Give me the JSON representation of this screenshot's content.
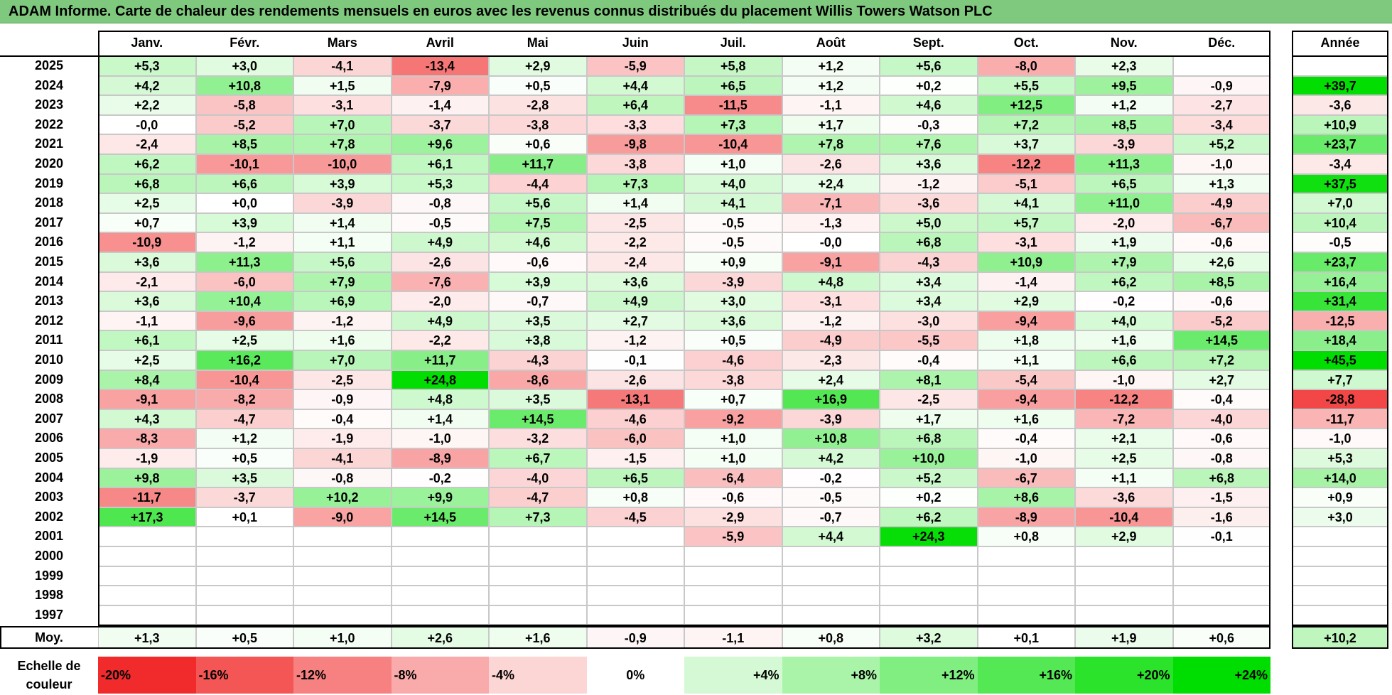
{
  "title": "ADAM Informe. Carte de chaleur des rendements mensuels en euros avec les revenus connus distribués du placement Willis Towers Watson PLC",
  "months": [
    "Janv.",
    "Févr.",
    "Mars",
    "Avril",
    "Mai",
    "Juin",
    "Juil.",
    "Août",
    "Sept.",
    "Oct.",
    "Nov.",
    "Déc."
  ],
  "year_header": "Année",
  "avg_label": "Moy.",
  "scale_label": "Echelle de couleur",
  "scale": [
    "-20%",
    "-16%",
    "-12%",
    "-8%",
    "-4%",
    "0%",
    "+4%",
    "+8%",
    "+12%",
    "+16%",
    "+20%",
    "+24%"
  ],
  "colors": {
    "title_bg": "#7fc97f",
    "positive": "#00dd00",
    "negative": "#ee0000"
  },
  "chart_data": {
    "type": "heatmap",
    "rows": [
      {
        "year": "2025",
        "months": [
          "+5,3",
          "+3,0",
          "-4,1",
          "-13,4",
          "+2,9",
          "-5,9",
          "+5,8",
          "+1,2",
          "+5,6",
          "-8,0",
          "+2,3",
          ""
        ],
        "annual": ""
      },
      {
        "year": "2024",
        "months": [
          "+4,2",
          "+10,8",
          "+1,5",
          "-7,9",
          "+0,5",
          "+4,4",
          "+6,5",
          "+1,2",
          "+0,2",
          "+5,5",
          "+9,5",
          "-0,9"
        ],
        "annual": "+39,7"
      },
      {
        "year": "2023",
        "months": [
          "+2,2",
          "-5,8",
          "-3,1",
          "-1,4",
          "-2,8",
          "+6,4",
          "-11,5",
          "-1,1",
          "+4,6",
          "+12,5",
          "+1,2",
          "-2,7"
        ],
        "annual": "-3,6"
      },
      {
        "year": "2022",
        "months": [
          "-0,0",
          "-5,2",
          "+7,0",
          "-3,7",
          "-3,8",
          "-3,3",
          "+7,3",
          "+1,7",
          "-0,3",
          "+7,2",
          "+8,5",
          "-3,4"
        ],
        "annual": "+10,9"
      },
      {
        "year": "2021",
        "months": [
          "-2,4",
          "+8,5",
          "+7,8",
          "+9,6",
          "+0,6",
          "-9,8",
          "-10,4",
          "+7,8",
          "+7,6",
          "+3,7",
          "-3,9",
          "+5,2"
        ],
        "annual": "+23,7"
      },
      {
        "year": "2020",
        "months": [
          "+6,2",
          "-10,1",
          "-10,0",
          "+6,1",
          "+11,7",
          "-3,8",
          "+1,0",
          "-2,6",
          "+3,6",
          "-12,2",
          "+11,3",
          "-1,0"
        ],
        "annual": "-3,4"
      },
      {
        "year": "2019",
        "months": [
          "+6,8",
          "+6,6",
          "+3,9",
          "+5,3",
          "-4,4",
          "+7,3",
          "+4,0",
          "+2,4",
          "-1,2",
          "-5,1",
          "+6,5",
          "+1,3"
        ],
        "annual": "+37,5"
      },
      {
        "year": "2018",
        "months": [
          "+2,5",
          "+0,0",
          "-3,9",
          "-0,8",
          "+5,6",
          "+1,4",
          "+4,1",
          "-7,1",
          "-3,6",
          "+4,1",
          "+11,0",
          "-4,9"
        ],
        "annual": "+7,0"
      },
      {
        "year": "2017",
        "months": [
          "+0,7",
          "+3,9",
          "+1,4",
          "-0,5",
          "+7,5",
          "-2,5",
          "-0,5",
          "-1,3",
          "+5,0",
          "+5,7",
          "-2,0",
          "-6,7"
        ],
        "annual": "+10,4"
      },
      {
        "year": "2016",
        "months": [
          "-10,9",
          "-1,2",
          "+1,1",
          "+4,9",
          "+4,6",
          "-2,2",
          "-0,5",
          "-0,0",
          "+6,8",
          "-3,1",
          "+1,9",
          "-0,6"
        ],
        "annual": "-0,5"
      },
      {
        "year": "2015",
        "months": [
          "+3,6",
          "+11,3",
          "+5,6",
          "-2,6",
          "-0,6",
          "-2,4",
          "+0,9",
          "-9,1",
          "-4,3",
          "+10,9",
          "+7,9",
          "+2,6"
        ],
        "annual": "+23,7"
      },
      {
        "year": "2014",
        "months": [
          "-2,1",
          "-6,0",
          "+7,9",
          "-7,6",
          "+3,9",
          "+3,6",
          "-3,9",
          "+4,8",
          "+3,4",
          "-1,4",
          "+6,2",
          "+8,5"
        ],
        "annual": "+16,4"
      },
      {
        "year": "2013",
        "months": [
          "+3,6",
          "+10,4",
          "+6,9",
          "-2,0",
          "-0,7",
          "+4,9",
          "+3,0",
          "-3,1",
          "+3,4",
          "+2,9",
          "-0,2",
          "-0,6"
        ],
        "annual": "+31,4"
      },
      {
        "year": "2012",
        "months": [
          "-1,1",
          "-9,6",
          "-1,2",
          "+4,9",
          "+3,5",
          "+2,7",
          "+3,6",
          "-1,2",
          "-3,0",
          "-9,4",
          "+4,0",
          "-5,2"
        ],
        "annual": "-12,5"
      },
      {
        "year": "2011",
        "months": [
          "+6,1",
          "+2,5",
          "+1,6",
          "-2,2",
          "+3,8",
          "-1,2",
          "+0,5",
          "-4,9",
          "-5,5",
          "+1,8",
          "+1,6",
          "+14,5"
        ],
        "annual": "+18,4"
      },
      {
        "year": "2010",
        "months": [
          "+2,5",
          "+16,2",
          "+7,0",
          "+11,7",
          "-4,3",
          "-0,1",
          "-4,6",
          "-2,3",
          "-0,4",
          "+1,1",
          "+6,6",
          "+7,2"
        ],
        "annual": "+45,5"
      },
      {
        "year": "2009",
        "months": [
          "+8,4",
          "-10,4",
          "-2,5",
          "+24,8",
          "-8,6",
          "-2,6",
          "-3,8",
          "+2,4",
          "+8,1",
          "-5,4",
          "-1,0",
          "+2,7"
        ],
        "annual": "+7,7"
      },
      {
        "year": "2008",
        "months": [
          "-9,1",
          "-8,2",
          "-0,9",
          "+4,8",
          "+3,5",
          "-13,1",
          "+0,7",
          "+16,9",
          "-2,5",
          "-9,4",
          "-12,2",
          "-0,4"
        ],
        "annual": "-28,8"
      },
      {
        "year": "2007",
        "months": [
          "+4,3",
          "-4,7",
          "-0,4",
          "+1,4",
          "+14,5",
          "-4,6",
          "-9,2",
          "-3,9",
          "+1,7",
          "+1,6",
          "-7,2",
          "-4,0"
        ],
        "annual": "-11,7"
      },
      {
        "year": "2006",
        "months": [
          "-8,3",
          "+1,2",
          "-1,9",
          "-1,0",
          "-3,2",
          "-6,0",
          "+1,0",
          "+10,8",
          "+6,8",
          "-0,4",
          "+2,1",
          "-0,6"
        ],
        "annual": "-1,0"
      },
      {
        "year": "2005",
        "months": [
          "-1,9",
          "+0,5",
          "-4,1",
          "-8,9",
          "+6,7",
          "-1,5",
          "+1,0",
          "+4,2",
          "+10,0",
          "-1,0",
          "+2,5",
          "-0,8"
        ],
        "annual": "+5,3"
      },
      {
        "year": "2004",
        "months": [
          "+9,8",
          "+3,5",
          "-0,8",
          "-0,2",
          "-4,0",
          "+6,5",
          "-6,4",
          "-0,2",
          "+5,2",
          "-6,7",
          "+1,1",
          "+6,8"
        ],
        "annual": "+14,0"
      },
      {
        "year": "2003",
        "months": [
          "-11,7",
          "-3,7",
          "+10,2",
          "+9,9",
          "-4,7",
          "+0,8",
          "-0,6",
          "-0,5",
          "+0,2",
          "+8,6",
          "-3,6",
          "-1,5"
        ],
        "annual": "+0,9"
      },
      {
        "year": "2002",
        "months": [
          "+17,3",
          "+0,1",
          "-9,0",
          "+14,5",
          "+7,3",
          "-4,5",
          "-2,9",
          "-0,7",
          "+6,2",
          "-8,9",
          "-10,4",
          "-1,6"
        ],
        "annual": "+3,0"
      },
      {
        "year": "2001",
        "months": [
          "",
          "",
          "",
          "",
          "",
          "",
          "-5,9",
          "+4,4",
          "+24,3",
          "+0,8",
          "+2,9",
          "-0,1"
        ],
        "annual": ""
      },
      {
        "year": "2000",
        "months": [
          "",
          "",
          "",
          "",
          "",
          "",
          "",
          "",
          "",
          "",
          "",
          ""
        ],
        "annual": ""
      },
      {
        "year": "1999",
        "months": [
          "",
          "",
          "",
          "",
          "",
          "",
          "",
          "",
          "",
          "",
          "",
          ""
        ],
        "annual": ""
      },
      {
        "year": "1998",
        "months": [
          "",
          "",
          "",
          "",
          "",
          "",
          "",
          "",
          "",
          "",
          "",
          ""
        ],
        "annual": ""
      },
      {
        "year": "1997",
        "months": [
          "",
          "",
          "",
          "",
          "",
          "",
          "",
          "",
          "",
          "",
          "",
          ""
        ],
        "annual": ""
      }
    ],
    "averages": [
      "+1,3",
      "+0,5",
      "+1,0",
      "+2,6",
      "+1,6",
      "-0,9",
      "-1,1",
      "+0,8",
      "+3,2",
      "+0,1",
      "+1,9",
      "+0,6"
    ],
    "annual_average": "+10,2"
  }
}
